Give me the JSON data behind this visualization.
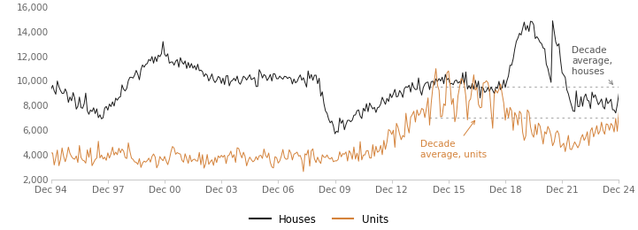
{
  "background_color": "#ffffff",
  "line_color_houses": "#1a1a1a",
  "line_color_units": "#d4823a",
  "decade_avg_houses": 9500,
  "decade_avg_units": 7000,
  "decade_avg_color": "#b0b0b0",
  "ylim": [
    2000,
    16000
  ],
  "yticks": [
    2000,
    4000,
    6000,
    8000,
    10000,
    12000,
    14000,
    16000
  ],
  "ytick_labels": [
    "2,000",
    "4,000",
    "6,000",
    "8,000",
    "10,000",
    "12,000",
    "14,000",
    "16,000"
  ],
  "xtick_labels": [
    "Dec 94",
    "Dec 97",
    "Dec 00",
    "Dec 03",
    "Dec 06",
    "Dec 09",
    "Dec 12",
    "Dec 15",
    "Dec 18",
    "Dec 21",
    "Dec 24"
  ],
  "legend_houses": "Houses",
  "legend_units": "Units",
  "annotation_houses": "Decade\naverage,\nhouses",
  "annotation_units": "Decade\naverage, units",
  "fontsize_ticks": 7.5,
  "fontsize_legend": 8.5,
  "fontsize_annotation": 7.5
}
